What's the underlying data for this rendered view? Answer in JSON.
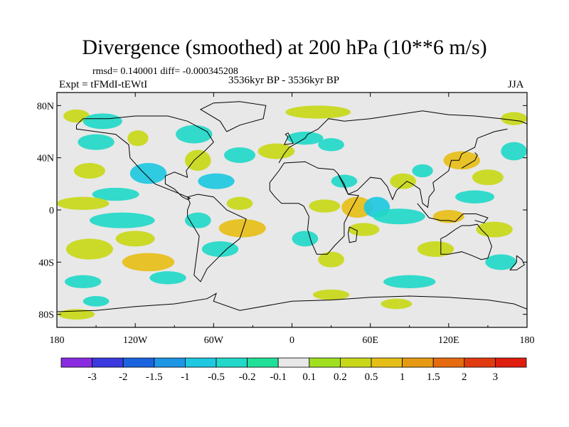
{
  "chart_data": {
    "type": "heatmap",
    "title": "Divergence (smoothed) at 200 hPa (10**6 m/s)",
    "stats": "rmsd= 0.140001 diff= -0.000345208",
    "experiment": "Expt = tFMdI-tEWtI",
    "period": "3536kyr BP - 3536kyr BP",
    "season": "JJA",
    "x_range": [
      -180,
      180
    ],
    "y_range": [
      -90,
      90
    ],
    "x_ticks": [
      {
        "value": -180,
        "label": "180"
      },
      {
        "value": -120,
        "label": "120W"
      },
      {
        "value": -60,
        "label": "60W"
      },
      {
        "value": 0,
        "label": "0"
      },
      {
        "value": 60,
        "label": "60E"
      },
      {
        "value": 120,
        "label": "120E"
      },
      {
        "value": 180,
        "label": "180"
      }
    ],
    "y_ticks": [
      {
        "value": 80,
        "label": "80N"
      },
      {
        "value": 40,
        "label": "40N"
      },
      {
        "value": 0,
        "label": "0"
      },
      {
        "value": -40,
        "label": "40S"
      },
      {
        "value": -80,
        "label": "80S"
      }
    ],
    "colorbar": {
      "labels": [
        "-3",
        "-2",
        "-1.5",
        "-1",
        "-0.5",
        "-0.2",
        "-0.1",
        "0.1",
        "0.2",
        "0.5",
        "1",
        "1.5",
        "2",
        "3"
      ],
      "colors": [
        "#8a2be2",
        "#3a3ae0",
        "#1a64e0",
        "#1e96e6",
        "#1ec8e0",
        "#22d8c8",
        "#20e098",
        "#e8e8e8",
        "#a0e020",
        "#c8d818",
        "#e6be18",
        "#e69a14",
        "#e66a10",
        "#e23a10",
        "#e01e10"
      ]
    },
    "anomaly_regions": [
      {
        "lon": -165,
        "lat": 72,
        "rx": 10,
        "ry": 5,
        "level": "0.2"
      },
      {
        "lon": -145,
        "lat": 68,
        "rx": 15,
        "ry": 6,
        "level": "-0.2"
      },
      {
        "lon": -150,
        "lat": 52,
        "rx": 14,
        "ry": 6,
        "level": "-0.2"
      },
      {
        "lon": -118,
        "lat": 55,
        "rx": 8,
        "ry": 6,
        "level": "0.2"
      },
      {
        "lon": -110,
        "lat": 28,
        "rx": 14,
        "ry": 8,
        "level": "-0.5"
      },
      {
        "lon": -135,
        "lat": 12,
        "rx": 18,
        "ry": 5,
        "level": "-0.2"
      },
      {
        "lon": -155,
        "lat": 30,
        "rx": 12,
        "ry": 6,
        "level": "0.2"
      },
      {
        "lon": -160,
        "lat": 5,
        "rx": 20,
        "ry": 5,
        "level": "0.2"
      },
      {
        "lon": -130,
        "lat": -8,
        "rx": 25,
        "ry": 6,
        "level": "-0.2"
      },
      {
        "lon": -155,
        "lat": -30,
        "rx": 18,
        "ry": 8,
        "level": "0.2"
      },
      {
        "lon": -120,
        "lat": -22,
        "rx": 15,
        "ry": 6,
        "level": "0.2"
      },
      {
        "lon": -110,
        "lat": -40,
        "rx": 20,
        "ry": 7,
        "level": "0.5"
      },
      {
        "lon": -95,
        "lat": -52,
        "rx": 14,
        "ry": 5,
        "level": "-0.2"
      },
      {
        "lon": -160,
        "lat": -55,
        "rx": 14,
        "ry": 5,
        "level": "-0.2"
      },
      {
        "lon": -75,
        "lat": 58,
        "rx": 14,
        "ry": 7,
        "level": "-0.2"
      },
      {
        "lon": -72,
        "lat": 38,
        "rx": 10,
        "ry": 8,
        "level": "0.2"
      },
      {
        "lon": -40,
        "lat": 42,
        "rx": 12,
        "ry": 6,
        "level": "-0.2"
      },
      {
        "lon": -58,
        "lat": 22,
        "rx": 14,
        "ry": 6,
        "level": "-0.5"
      },
      {
        "lon": -40,
        "lat": 5,
        "rx": 10,
        "ry": 5,
        "level": "0.2"
      },
      {
        "lon": -38,
        "lat": -14,
        "rx": 18,
        "ry": 7,
        "level": "0.5"
      },
      {
        "lon": -72,
        "lat": -8,
        "rx": 10,
        "ry": 6,
        "level": "-0.2"
      },
      {
        "lon": -55,
        "lat": -30,
        "rx": 14,
        "ry": 6,
        "level": "-0.2"
      },
      {
        "lon": -12,
        "lat": 45,
        "rx": 14,
        "ry": 6,
        "level": "0.2"
      },
      {
        "lon": 10,
        "lat": 55,
        "rx": 14,
        "ry": 5,
        "level": "-0.2"
      },
      {
        "lon": 30,
        "lat": 50,
        "rx": 10,
        "ry": 5,
        "level": "-0.2"
      },
      {
        "lon": 20,
        "lat": 75,
        "rx": 25,
        "ry": 5,
        "level": "0.2"
      },
      {
        "lon": 40,
        "lat": 22,
        "rx": 10,
        "ry": 5,
        "level": "-0.2"
      },
      {
        "lon": 25,
        "lat": 3,
        "rx": 12,
        "ry": 5,
        "level": "0.2"
      },
      {
        "lon": 50,
        "lat": 2,
        "rx": 12,
        "ry": 8,
        "level": "0.5"
      },
      {
        "lon": 65,
        "lat": 2,
        "rx": 10,
        "ry": 8,
        "level": "-0.5"
      },
      {
        "lon": 82,
        "lat": -5,
        "rx": 20,
        "ry": 6,
        "level": "-0.2"
      },
      {
        "lon": 55,
        "lat": -15,
        "rx": 12,
        "ry": 5,
        "level": "0.2"
      },
      {
        "lon": 10,
        "lat": -22,
        "rx": 10,
        "ry": 6,
        "level": "-0.2"
      },
      {
        "lon": 30,
        "lat": -38,
        "rx": 10,
        "ry": 6,
        "level": "0.2"
      },
      {
        "lon": 85,
        "lat": 22,
        "rx": 10,
        "ry": 6,
        "level": "0.2"
      },
      {
        "lon": 100,
        "lat": 30,
        "rx": 8,
        "ry": 5,
        "level": "-0.2"
      },
      {
        "lon": 130,
        "lat": 38,
        "rx": 14,
        "ry": 7,
        "level": "0.5"
      },
      {
        "lon": 150,
        "lat": 25,
        "rx": 12,
        "ry": 6,
        "level": "0.2"
      },
      {
        "lon": 140,
        "lat": 10,
        "rx": 15,
        "ry": 5,
        "level": "-0.2"
      },
      {
        "lon": 120,
        "lat": -5,
        "rx": 12,
        "ry": 5,
        "level": "0.5"
      },
      {
        "lon": 155,
        "lat": -15,
        "rx": 14,
        "ry": 6,
        "level": "0.2"
      },
      {
        "lon": 110,
        "lat": -30,
        "rx": 14,
        "ry": 6,
        "level": "0.2"
      },
      {
        "lon": 160,
        "lat": -40,
        "rx": 12,
        "ry": 6,
        "level": "-0.2"
      },
      {
        "lon": 170,
        "lat": 70,
        "rx": 10,
        "ry": 5,
        "level": "0.2"
      },
      {
        "lon": 170,
        "lat": 45,
        "rx": 10,
        "ry": 7,
        "level": "-0.2"
      },
      {
        "lon": 90,
        "lat": -55,
        "rx": 20,
        "ry": 5,
        "level": "-0.2"
      },
      {
        "lon": 30,
        "lat": -65,
        "rx": 14,
        "ry": 4,
        "level": "0.2"
      },
      {
        "lon": -165,
        "lat": -80,
        "rx": 14,
        "ry": 4,
        "level": "0.2"
      },
      {
        "lon": 80,
        "lat": -72,
        "rx": 12,
        "ry": 4,
        "level": "0.2"
      },
      {
        "lon": -150,
        "lat": -70,
        "rx": 10,
        "ry": 4,
        "level": "-0.2"
      }
    ]
  }
}
